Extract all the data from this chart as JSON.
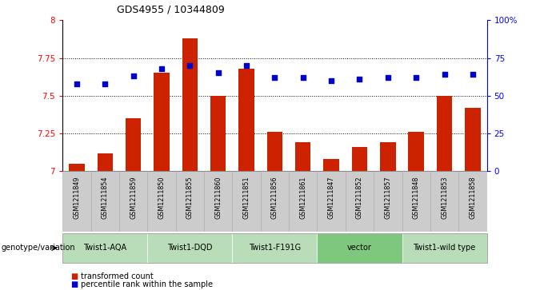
{
  "title": "GDS4955 / 10344809",
  "samples": [
    "GSM1211849",
    "GSM1211854",
    "GSM1211859",
    "GSM1211850",
    "GSM1211855",
    "GSM1211860",
    "GSM1211851",
    "GSM1211856",
    "GSM1211861",
    "GSM1211847",
    "GSM1211852",
    "GSM1211857",
    "GSM1211848",
    "GSM1211853",
    "GSM1211858"
  ],
  "bar_values": [
    7.05,
    7.12,
    7.35,
    7.65,
    7.88,
    7.5,
    7.68,
    7.26,
    7.19,
    7.08,
    7.16,
    7.19,
    7.26,
    7.5,
    7.42
  ],
  "percentile_values": [
    58,
    58,
    63,
    68,
    70,
    65,
    70,
    62,
    62,
    60,
    61,
    62,
    62,
    64,
    64
  ],
  "ymin": 7.0,
  "ymax": 8.0,
  "yticks": [
    7.0,
    7.25,
    7.5,
    7.75,
    8.0
  ],
  "ytick_labels": [
    "7",
    "7.25",
    "7.5",
    "7.75",
    "8"
  ],
  "right_yticks": [
    0,
    25,
    50,
    75,
    100
  ],
  "right_ytick_labels": [
    "0",
    "25",
    "50",
    "75",
    "100%"
  ],
  "groups": [
    {
      "label": "Twist1-AQA",
      "start": 0,
      "end": 3,
      "color": "#b8ddb8"
    },
    {
      "label": "Twist1-DQD",
      "start": 3,
      "end": 6,
      "color": "#b8ddb8"
    },
    {
      "label": "Twist1-F191G",
      "start": 6,
      "end": 9,
      "color": "#b8ddb8"
    },
    {
      "label": "vector",
      "start": 9,
      "end": 12,
      "color": "#7ec87e"
    },
    {
      "label": "Twist1-wild type",
      "start": 12,
      "end": 15,
      "color": "#b8ddb8"
    }
  ],
  "bar_color": "#cc2200",
  "dot_color": "#0000cc",
  "label_bg": "#cccccc",
  "genotype_label": "genotype/variation"
}
